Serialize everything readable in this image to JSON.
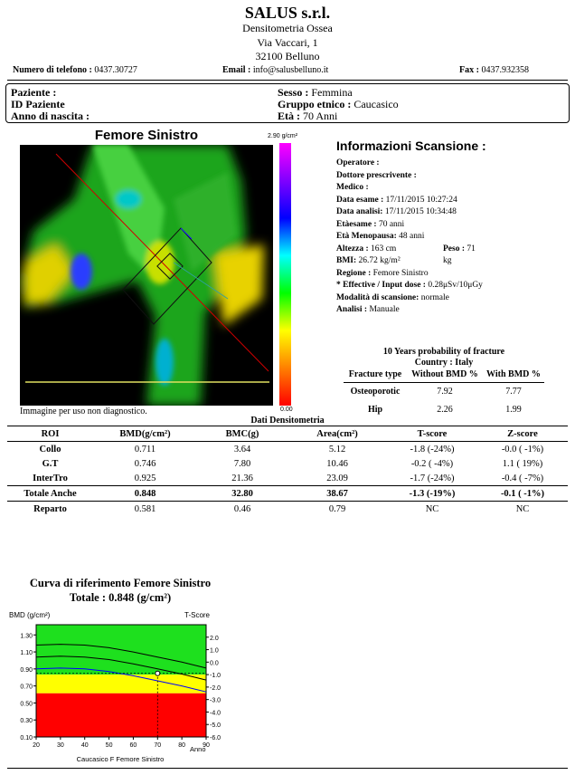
{
  "header": {
    "company": "SALUS s.r.l.",
    "dept": "Densitometria Ossea",
    "street": "Via Vaccari, 1",
    "city": "32100 Belluno",
    "phone_label": "Numero di telefono :",
    "phone": "0437.30727",
    "email_label": "Email :",
    "email": "info@salusbelluno.it",
    "fax_label": "Fax :",
    "fax": "0437.932358"
  },
  "patient": {
    "paziente_label": "Paziente :",
    "id_label": "ID Paziente",
    "anno_label": "Anno di nascita :",
    "sesso_label": "Sesso :",
    "sesso": "Femmina",
    "gruppo_label": "Gruppo etnico :",
    "gruppo": "Caucasico",
    "eta_label": "Età :",
    "eta": "70 Anni"
  },
  "image": {
    "title": "Femore Sinistro",
    "scale_max": "2.90 g/cm²",
    "scale_min": "0.00",
    "disclaimer": "Immagine per uso non diagnostico."
  },
  "scan_info": {
    "title": "Informazioni Scansione :",
    "operatore_label": "Operatore :",
    "dottore_label": "Dottore prescrivente :",
    "medico_label": "Medico :",
    "data_esame_label": "Data esame :",
    "data_esame": "17/11/2015 10:27:24",
    "data_analisi_label": "Data analisi:",
    "data_analisi": "17/11/2015 10:34:48",
    "eta_esame_label": "Etàesame :",
    "eta_esame": "70 anni",
    "menopausa_label": "Età Menopausa:",
    "menopausa": "48 anni",
    "altezza_label": "Altezza :",
    "altezza": "163 cm",
    "peso_label": "Peso :",
    "peso": "71 kg",
    "bmi_label": "BMI:",
    "bmi": "26.72 kg/m²",
    "regione_label": "Regione :",
    "regione": "Femore Sinistro",
    "dose_label": "* Effective / Input dose :",
    "dose": "0.28μSv/10μGy",
    "modalita_label": "Modalità di scansione:",
    "modalita": "normale",
    "analisi_label": "Analisi :",
    "analisi": "Manuale"
  },
  "fracture": {
    "title": "10 Years probability of fracture",
    "country": "Country : Italy",
    "col_type": "Fracture type",
    "col_without": "Without BMD %",
    "col_with": "With BMD %",
    "rows": [
      {
        "type": "Osteoporotic",
        "without": "7.92",
        "with": "7.77"
      },
      {
        "type": "Hip",
        "without": "2.26",
        "with": "1.99"
      }
    ]
  },
  "densitometry": {
    "title": "Dati Densitometria",
    "headers": [
      "ROI",
      "BMD(g/cm²)",
      "BMC(g)",
      "Area(cm²)",
      "T-score",
      "Z-score"
    ],
    "rows": [
      [
        "Collo",
        "0.711",
        "3.64",
        "5.12",
        "-1.8 (-24%)",
        "-0.0 ( -1%)"
      ],
      [
        "G.T",
        "0.746",
        "7.80",
        "10.46",
        "-0.2 ( -4%)",
        "1.1 ( 19%)"
      ],
      [
        "InterTro",
        "0.925",
        "21.36",
        "23.09",
        "-1.7 (-24%)",
        "-0.4 ( -7%)"
      ],
      [
        "Totale Anche",
        "0.848",
        "32.80",
        "38.67",
        "-1.3 (-19%)",
        "-0.1 ( -1%)"
      ],
      [
        "Reparto",
        "0.581",
        "0.46",
        "0.79",
        "NC",
        "NC"
      ]
    ]
  },
  "curve": {
    "title": "Curva di riferimento Femore Sinistro",
    "total": "Totale :  0.848 (g/cm²)",
    "ylabel_left": "BMD (g/cm²)",
    "ylabel_right": "T-Score",
    "xlabel": "Anno",
    "footer": "Caucasico F Femore Sinistro",
    "colors": {
      "green": "#1ee01e",
      "yellow": "#ffff00",
      "red": "#ff0000"
    },
    "chart_data": {
      "type": "line",
      "x_ticks": [
        "20",
        "30",
        "40",
        "50",
        "60",
        "70",
        "80",
        "90"
      ],
      "y_left_ticks": [
        "1.30",
        "1.10",
        "0.90",
        "0.70",
        "0.50",
        "0.30",
        "0.10"
      ],
      "y_right_ticks": [
        "2.0",
        "1.0",
        "0.0",
        "-1.0",
        "-2.0",
        "-3.0",
        "-4.0",
        "-5.0",
        "-6.0"
      ],
      "xlim": [
        20,
        90
      ],
      "ylim_left": [
        0.1,
        1.42
      ],
      "ylim_right": [
        -6.0,
        3.0
      ],
      "green_above_t": -1.0,
      "red_below_t": -2.5,
      "mean_curve": {
        "x": [
          20,
          30,
          40,
          50,
          60,
          70,
          80,
          90
        ],
        "y": [
          1.04,
          1.05,
          1.04,
          1.01,
          0.96,
          0.9,
          0.84,
          0.77
        ]
      },
      "upper_curve": {
        "x": [
          20,
          30,
          40,
          50,
          60,
          70,
          80,
          90
        ],
        "y": [
          1.18,
          1.19,
          1.18,
          1.15,
          1.1,
          1.04,
          0.98,
          0.91
        ]
      },
      "lower_curve": {
        "x": [
          20,
          30,
          40,
          50,
          60,
          70,
          80,
          90
        ],
        "y": [
          0.9,
          0.91,
          0.9,
          0.87,
          0.82,
          0.76,
          0.7,
          0.63
        ]
      },
      "patient": {
        "x": 70,
        "y": 0.848
      }
    }
  }
}
